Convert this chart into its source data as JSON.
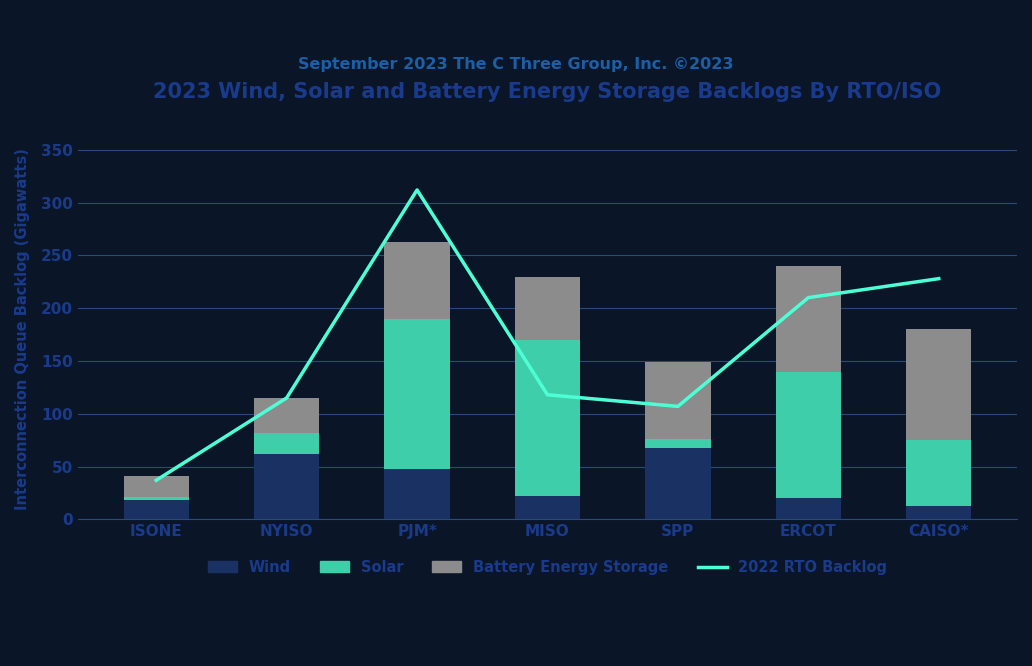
{
  "title": "2023 Wind, Solar and Battery Energy Storage Backlogs By RTO/ISO",
  "subtitle": "September 2023 The C Three Group, Inc. ©2023",
  "categories": [
    "ISONE",
    "NYISO",
    "PJM*",
    "MISO",
    "SPP",
    "ERCOT",
    "CAISO*"
  ],
  "wind": [
    18,
    62,
    48,
    22,
    68,
    20,
    13
  ],
  "solar": [
    3,
    20,
    142,
    148,
    8,
    120,
    62
  ],
  "battery": [
    20,
    33,
    73,
    60,
    73,
    100,
    105
  ],
  "line_2022": [
    37,
    115,
    312,
    118,
    107,
    210,
    228
  ],
  "wind_color": "#1a3263",
  "solar_color": "#3ecfaa",
  "battery_color": "#8c8c8c",
  "line_color": "#4dffd4",
  "bg_color": "#0a1628",
  "plot_bg": "#0e1e38",
  "title_color": "#1a3a8c",
  "subtitle_color": "#1a5fa8",
  "tick_color": "#1a3a8c",
  "grid_color": "#2a4a7a",
  "ylabel": "Interconnection Queue Backlog (Gigawatts)",
  "ylim": [
    0,
    360
  ],
  "yticks": [
    0,
    50,
    100,
    150,
    200,
    250,
    300,
    350
  ]
}
